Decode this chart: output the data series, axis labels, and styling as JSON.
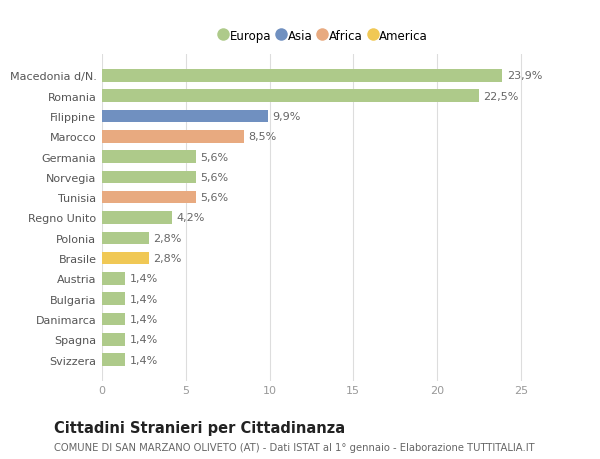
{
  "categories": [
    "Macedonia d/N.",
    "Romania",
    "Filippine",
    "Marocco",
    "Germania",
    "Norvegia",
    "Tunisia",
    "Regno Unito",
    "Polonia",
    "Brasile",
    "Austria",
    "Bulgaria",
    "Danimarca",
    "Spagna",
    "Svizzera"
  ],
  "values": [
    23.9,
    22.5,
    9.9,
    8.5,
    5.6,
    5.6,
    5.6,
    4.2,
    2.8,
    2.8,
    1.4,
    1.4,
    1.4,
    1.4,
    1.4
  ],
  "labels": [
    "23,9%",
    "22,5%",
    "9,9%",
    "8,5%",
    "5,6%",
    "5,6%",
    "5,6%",
    "4,2%",
    "2,8%",
    "2,8%",
    "1,4%",
    "1,4%",
    "1,4%",
    "1,4%",
    "1,4%"
  ],
  "colors": [
    "#aeca8a",
    "#aeca8a",
    "#7090c0",
    "#e8aa80",
    "#aeca8a",
    "#aeca8a",
    "#e8aa80",
    "#aeca8a",
    "#aeca8a",
    "#f0c855",
    "#aeca8a",
    "#aeca8a",
    "#aeca8a",
    "#aeca8a",
    "#aeca8a"
  ],
  "legend_labels": [
    "Europa",
    "Asia",
    "Africa",
    "America"
  ],
  "legend_colors": [
    "#aeca8a",
    "#7090c0",
    "#e8aa80",
    "#f0c855"
  ],
  "title": "Cittadini Stranieri per Cittadinanza",
  "subtitle": "COMUNE DI SAN MARZANO OLIVETO (AT) - Dati ISTAT al 1° gennaio - Elaborazione TUTTITALIA.IT",
  "xlim": [
    0,
    26.5
  ],
  "xticks": [
    0,
    5,
    10,
    15,
    20,
    25
  ],
  "background_color": "#ffffff",
  "grid_color": "#dddddd",
  "bar_height": 0.62,
  "label_fontsize": 8.0,
  "tick_fontsize": 8.0,
  "title_fontsize": 10.5,
  "subtitle_fontsize": 7.2,
  "value_label_color": "#666666",
  "ytick_color": "#555555",
  "xtick_color": "#999999"
}
